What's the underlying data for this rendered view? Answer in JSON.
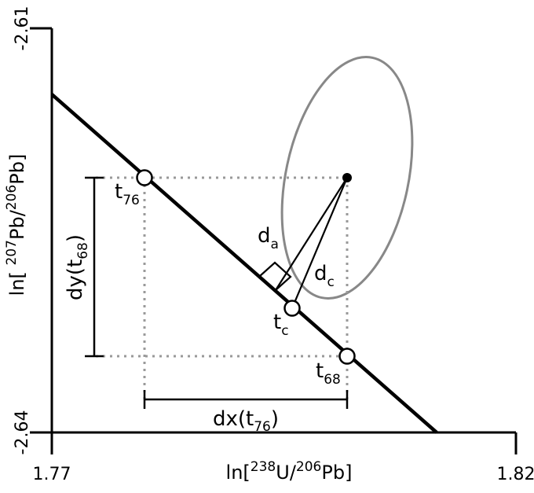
{
  "axes": {
    "x": {
      "label": {
        "pre": "ln[",
        "sup1": "238",
        "mid": "U/",
        "sup2": "206",
        "post": "Pb]"
      },
      "min_label": "1.77",
      "max_label": "1.82"
    },
    "y": {
      "label": {
        "pre": "ln[ ",
        "sup1": "207",
        "mid": "Pb/",
        "sup2": "206",
        "post": "Pb]"
      },
      "min_label": "-2.64",
      "max_label": "-2.61"
    }
  },
  "points": {
    "t76": {
      "base": "t",
      "sub": "76"
    },
    "tc": {
      "base": "t",
      "sub": "c"
    },
    "t68": {
      "base": "t",
      "sub": "68"
    }
  },
  "distances": {
    "da": {
      "base": "d",
      "sub": "a"
    },
    "dc": {
      "base": "d",
      "sub": "c"
    }
  },
  "intervals": {
    "dx": {
      "pre": "dx(t",
      "sub": "76",
      "post": ")"
    },
    "dy": {
      "pre": "dy(t",
      "sub": "68",
      "post": ")"
    }
  },
  "colors": {
    "ink": "#000000",
    "ellipse": "#888888",
    "guide": "#999999"
  }
}
